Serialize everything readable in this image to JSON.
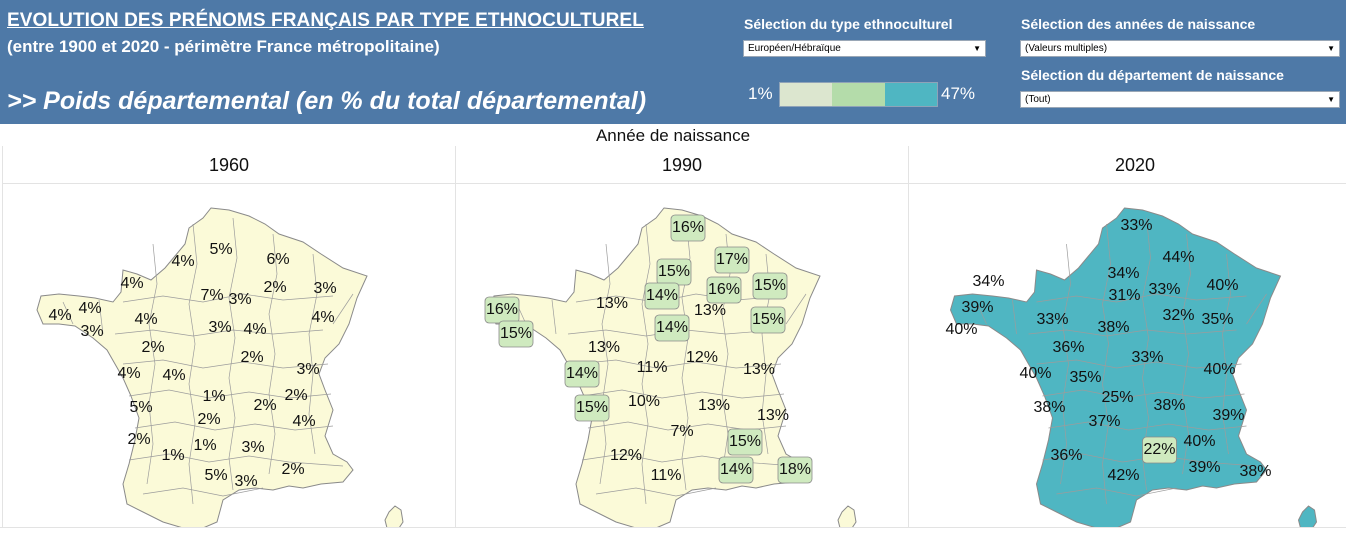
{
  "header": {
    "title": "EVOLUTION DES PRÉNOMS FRANÇAIS PAR TYPE ETHNOCULTUREL",
    "subtitle": "(entre 1900 et 2020 - périmètre France métropolitaine)",
    "metric": ">> Poids départemental (en % du total départemental)",
    "background_color": "#4e79a7"
  },
  "filters": {
    "type_label": "Sélection du type ethnoculturel",
    "type_value": "Européen/Hébraïque",
    "years_label": "Sélection des années de naissance",
    "years_value": "(Valeurs multiples)",
    "dept_label": "Sélection du département de naissance",
    "dept_value": "(Tout)",
    "dropdown_icon": "triangle-down-icon"
  },
  "legend": {
    "min": "1%",
    "max": "47%",
    "colors": [
      "#dce6cf",
      "#b4dcaa",
      "#4fb6c2"
    ]
  },
  "colors": {
    "low": "#fbfad8",
    "mid": "#cfeabf",
    "high": "#4fb6c2",
    "border": "#8a8a8a"
  },
  "axis_title": "Année de naissance",
  "chart_data": {
    "type": "map",
    "column_header": "Année de naissance",
    "panels": [
      {
        "year": "1960",
        "labels": [
          "5%",
          "4%",
          "6%",
          "4%",
          "7%",
          "3%",
          "2%",
          "3%",
          "4%",
          "4%",
          "4%",
          "3%",
          "3%",
          "4%",
          "4%",
          "2%",
          "4%",
          "4%",
          "2%",
          "1%",
          "3%",
          "5%",
          "2%",
          "2%",
          "4%",
          "2%",
          "2%",
          "1%",
          "1%",
          "3%",
          "2%",
          "5%",
          "3%"
        ]
      },
      {
        "year": "1990",
        "labels": [
          "16%",
          "15%",
          "17%",
          "15%",
          "14%",
          "13%",
          "16%",
          "15%",
          "16%",
          "13%",
          "15%",
          "14%",
          "13%",
          "12%",
          "14%",
          "11%",
          "13%",
          "15%",
          "10%",
          "13%",
          "13%",
          "7%",
          "15%",
          "12%",
          "14%",
          "11%",
          "18%"
        ]
      },
      {
        "year": "2020",
        "labels": [
          "33%",
          "44%",
          "34%",
          "34%",
          "40%",
          "39%",
          "31%",
          "33%",
          "33%",
          "40%",
          "32%",
          "35%",
          "38%",
          "36%",
          "33%",
          "40%",
          "40%",
          "35%",
          "25%",
          "38%",
          "38%",
          "37%",
          "39%",
          "40%",
          "22%",
          "36%",
          "39%",
          "42%",
          "38%"
        ]
      }
    ]
  }
}
